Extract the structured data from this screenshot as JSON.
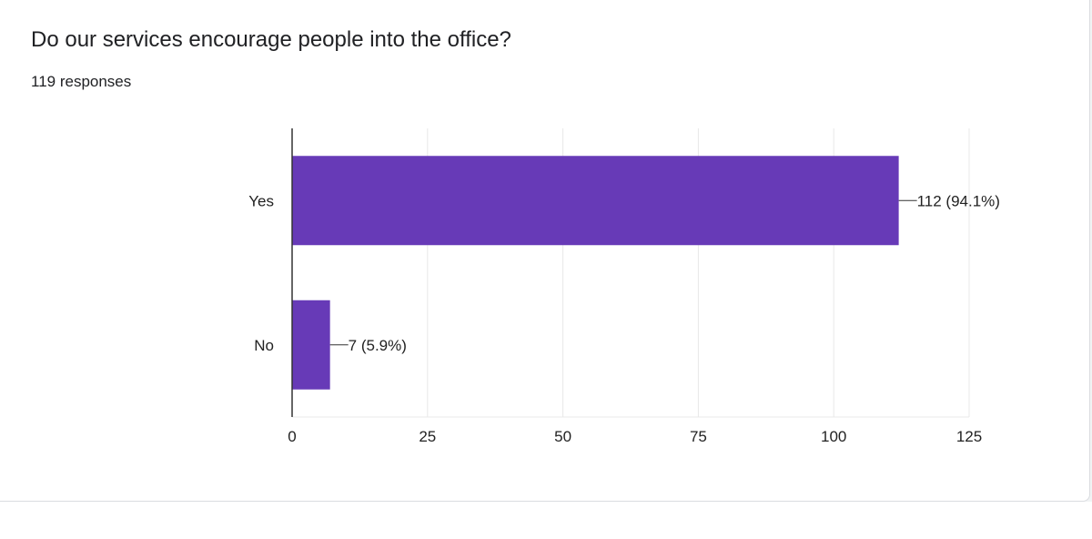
{
  "question": {
    "title": "Do our services encourage people into the office?",
    "responses": "119 responses"
  },
  "colors": {
    "bar": "#673ab7",
    "grid": "#e8e8e8",
    "axis": "#333333",
    "text": "#222222"
  },
  "chart_data": {
    "type": "bar",
    "orientation": "horizontal",
    "categories": [
      "Yes",
      "No"
    ],
    "values": [
      112,
      7
    ],
    "labels": [
      "112 (94.1%)",
      "7 (5.9%)"
    ],
    "xticks": [
      "0",
      "25",
      "50",
      "75",
      "100",
      "125"
    ],
    "xlim": [
      0,
      125
    ],
    "grid": true
  }
}
